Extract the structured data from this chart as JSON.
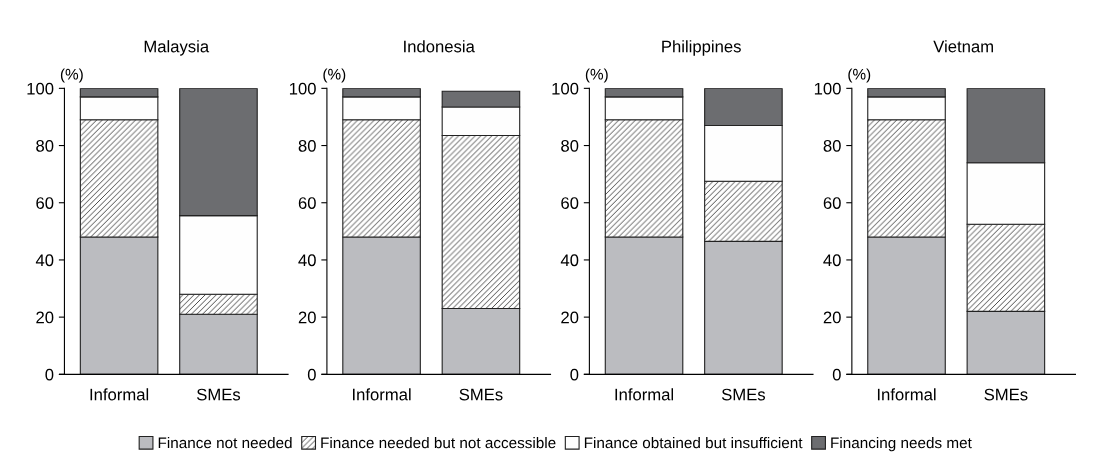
{
  "chart_data": [
    {
      "type": "bar",
      "title": "Malaysia",
      "ylabel": "(%)",
      "categories": [
        "Informal",
        "SMEs"
      ],
      "stacked": true,
      "ylim": [
        0,
        100
      ],
      "yticks": [
        0,
        20,
        40,
        60,
        80,
        100
      ],
      "grid": false,
      "legend": "bottom",
      "series": [
        {
          "name": "Finance not needed",
          "color": "#bbbcc0",
          "values": [
            48,
            21
          ]
        },
        {
          "name": "Finance needed but not accessible",
          "color": "#222222",
          "values": [
            41,
            7
          ]
        },
        {
          "name": "Finance obtained but insufficient",
          "color": "#fefefe",
          "values": [
            8,
            27.5
          ]
        },
        {
          "name": "Financing needs met",
          "color": "#6c6d70",
          "values": [
            3,
            44.5
          ]
        }
      ]
    },
    {
      "type": "bar",
      "title": "Indonesia",
      "ylabel": "(%)",
      "categories": [
        "Informal",
        "SMEs"
      ],
      "stacked": true,
      "ylim": [
        0,
        100
      ],
      "yticks": [
        0,
        20,
        40,
        60,
        80,
        100
      ],
      "grid": false,
      "series": [
        {
          "name": "Finance not needed",
          "color": "#bbbcc0",
          "values": [
            48,
            23
          ]
        },
        {
          "name": "Finance needed but not accessible",
          "color": "#222222",
          "values": [
            41,
            60.5
          ]
        },
        {
          "name": "Finance obtained but insufficient",
          "color": "#fefefe",
          "values": [
            8,
            10
          ]
        },
        {
          "name": "Financing needs met",
          "color": "#6c6d70",
          "values": [
            3,
            5.5
          ]
        }
      ]
    },
    {
      "type": "bar",
      "title": "Philippines",
      "ylabel": "(%)",
      "categories": [
        "Informal",
        "SMEs"
      ],
      "stacked": true,
      "ylim": [
        0,
        100
      ],
      "yticks": [
        0,
        20,
        40,
        60,
        80,
        100
      ],
      "grid": false,
      "series": [
        {
          "name": "Finance not needed",
          "color": "#bbbcc0",
          "values": [
            48,
            46.5
          ]
        },
        {
          "name": "Finance needed but not accessible",
          "color": "#222222",
          "values": [
            41,
            21
          ]
        },
        {
          "name": "Finance obtained but insufficient",
          "color": "#fefefe",
          "values": [
            8,
            19.5
          ]
        },
        {
          "name": "Financing needs met",
          "color": "#6c6d70",
          "values": [
            3,
            13
          ]
        }
      ]
    },
    {
      "type": "bar",
      "title": "Vietnam",
      "ylabel": "(%)",
      "categories": [
        "Informal",
        "SMEs"
      ],
      "stacked": true,
      "ylim": [
        0,
        100
      ],
      "yticks": [
        0,
        20,
        40,
        60,
        80,
        100
      ],
      "grid": false,
      "series": [
        {
          "name": "Finance not needed",
          "color": "#bbbcc0",
          "values": [
            48,
            22
          ]
        },
        {
          "name": "Finance needed but not accessible",
          "color": "#222222",
          "values": [
            41,
            30.5
          ]
        },
        {
          "name": "Finance obtained but insufficient",
          "color": "#fefefe",
          "values": [
            8,
            21.5
          ]
        },
        {
          "name": "Financing needs met",
          "color": "#6c6d70",
          "values": [
            3,
            26
          ]
        }
      ]
    }
  ]
}
